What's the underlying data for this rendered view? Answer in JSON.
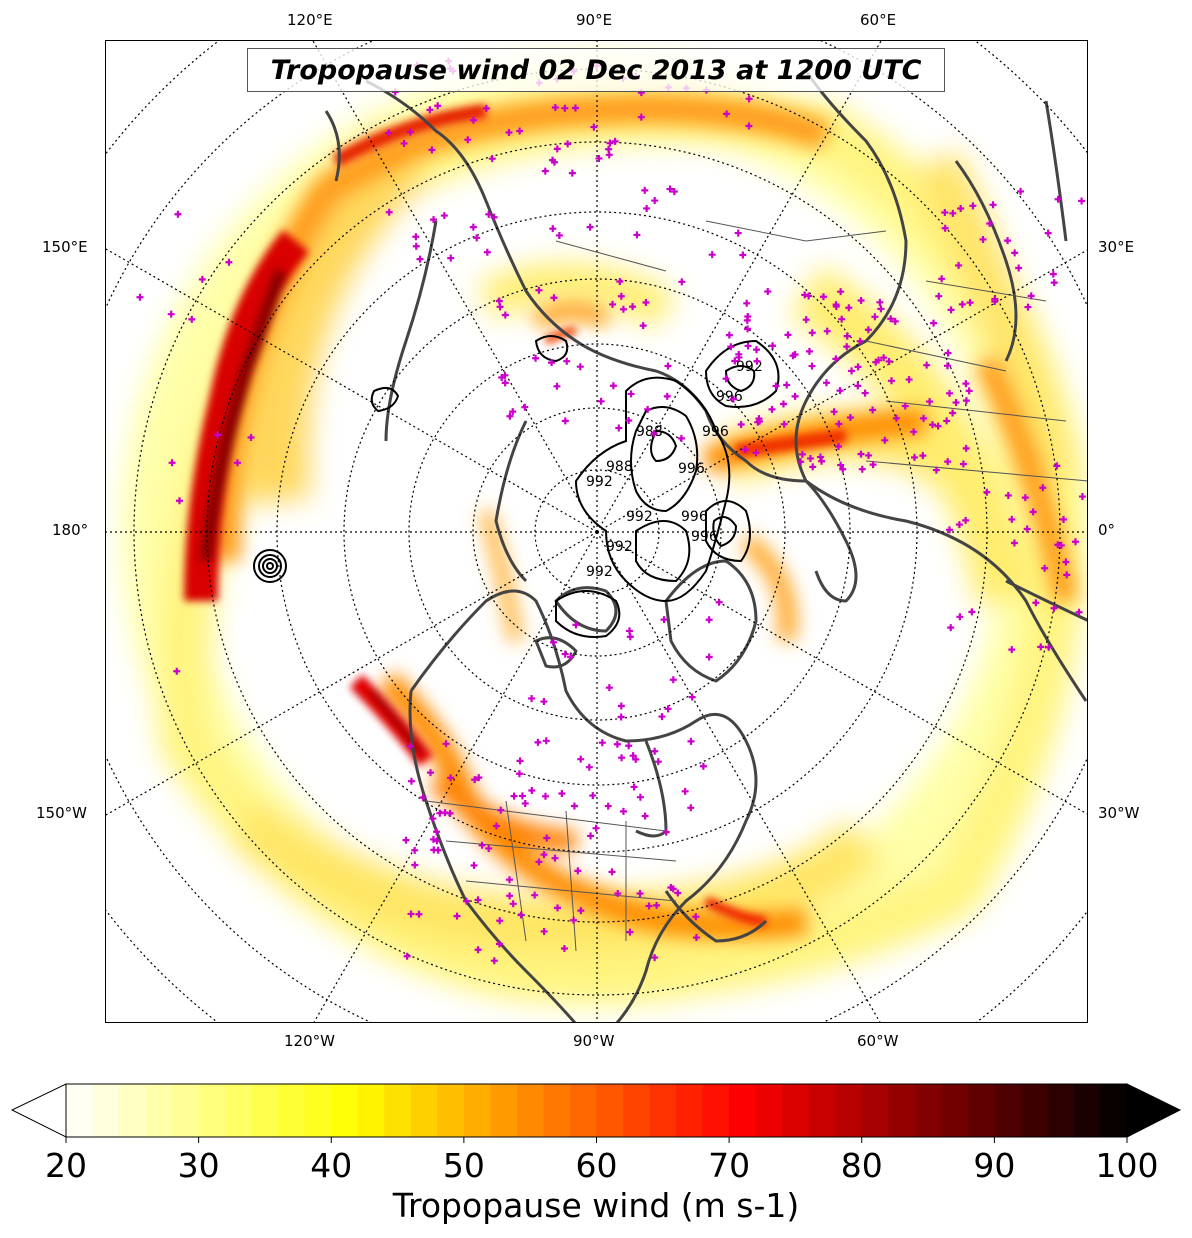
{
  "title": "Tropopause wind 02 Dec 2013 at 1200 UTC",
  "colorbar": {
    "label": "Tropopause wind (m s-1)",
    "ticks": [
      "20",
      "30",
      "40",
      "50",
      "60",
      "70",
      "80",
      "90",
      "100"
    ],
    "min": 20,
    "max": 100,
    "colormap": "hot_r",
    "extend": "both"
  },
  "map": {
    "projection": "north-polar-stereographic",
    "longitude_labels": {
      "top": [
        "120°E",
        "90°E",
        "60°E"
      ],
      "bottom": [
        "120°W",
        "90°W",
        "60°W"
      ],
      "left": [
        "150°E",
        "180°",
        "150°W"
      ],
      "right": [
        "30°E",
        "0°",
        "30°W"
      ]
    },
    "pressure_contour_labels": [
      "992",
      "996",
      "988",
      "992",
      "996",
      "992",
      "996",
      "996",
      "992",
      "988",
      "992",
      "996"
    ],
    "station_marker_color": "#cc00cc",
    "coastline_color": "#444444",
    "jet_colors": {
      "light": "#ffff80",
      "yellow": "#ffee00",
      "orange": "#ff8c00",
      "red": "#e00000",
      "darkred": "#8b0000"
    }
  }
}
